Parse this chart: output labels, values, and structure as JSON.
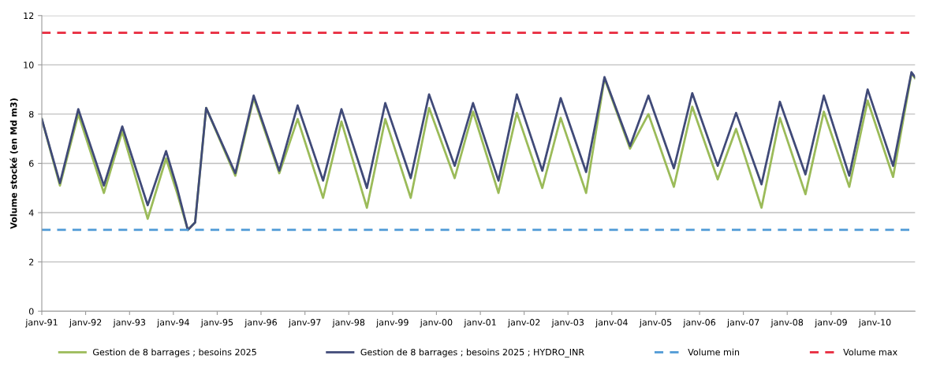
{
  "chart_data": {
    "type": "line",
    "ylabel": "Volume stocké (en Md m3)",
    "xlim": [
      "1991-01",
      "2010-12"
    ],
    "xticks": [
      {
        "value": "1991-01",
        "label": "janv-91"
      },
      {
        "value": "1992-01",
        "label": "janv-92"
      },
      {
        "value": "1993-01",
        "label": "janv-93"
      },
      {
        "value": "1994-01",
        "label": "janv-94"
      },
      {
        "value": "1995-01",
        "label": "janv-95"
      },
      {
        "value": "1996-01",
        "label": "janv-96"
      },
      {
        "value": "1997-01",
        "label": "janv-97"
      },
      {
        "value": "1998-01",
        "label": "janv-98"
      },
      {
        "value": "1999-01",
        "label": "janv-99"
      },
      {
        "value": "2000-01",
        "label": "janv-00"
      },
      {
        "value": "2001-01",
        "label": "janv-01"
      },
      {
        "value": "2002-01",
        "label": "janv-02"
      },
      {
        "value": "2003-01",
        "label": "janv-03"
      },
      {
        "value": "2004-01",
        "label": "janv-04"
      },
      {
        "value": "2005-01",
        "label": "janv-05"
      },
      {
        "value": "2006-01",
        "label": "janv-06"
      },
      {
        "value": "2007-01",
        "label": "janv-07"
      },
      {
        "value": "2008-01",
        "label": "janv-08"
      },
      {
        "value": "2009-01",
        "label": "janv-09"
      },
      {
        "value": "2010-01",
        "label": "janv-10"
      }
    ],
    "ylim": [
      0,
      12
    ],
    "yticks": [
      0,
      2,
      4,
      6,
      8,
      10,
      12
    ],
    "grid": "y",
    "legend": "bottom",
    "marker": "none",
    "line_style": "solid",
    "x": [
      "1991-01",
      "1991-06",
      "1991-11",
      "1992-06",
      "1992-11",
      "1993-06",
      "1993-11",
      "1994-02",
      "1994-05",
      "1994-07",
      "1994-10",
      "1995-06",
      "1995-11",
      "1996-06",
      "1996-11",
      "1997-06",
      "1997-11",
      "1998-06",
      "1998-11",
      "1999-06",
      "1999-11",
      "2000-06",
      "2000-11",
      "2001-06",
      "2001-11",
      "2002-06",
      "2002-11",
      "2003-06",
      "2003-11",
      "2004-06",
      "2004-11",
      "2005-06",
      "2005-11",
      "2006-06",
      "2006-11",
      "2007-06",
      "2007-11",
      "2008-06",
      "2008-11",
      "2009-06",
      "2009-11",
      "2010-06",
      "2010-11",
      "2010-12"
    ],
    "series": [
      {
        "name": "Gestion de 8 barrages ; besoins 2025",
        "color": "#9bbb59",
        "values": [
          7.8,
          5.1,
          8.0,
          4.8,
          7.3,
          3.75,
          6.2,
          4.8,
          3.3,
          3.6,
          8.25,
          5.5,
          8.65,
          5.6,
          7.8,
          4.6,
          7.7,
          4.2,
          7.8,
          4.6,
          8.25,
          5.4,
          8.1,
          4.8,
          8.05,
          5.0,
          7.85,
          4.8,
          9.45,
          6.6,
          8.0,
          5.05,
          8.3,
          5.35,
          7.4,
          4.2,
          7.85,
          4.75,
          8.1,
          5.05,
          8.55,
          5.45,
          9.65,
          9.45
        ]
      },
      {
        "name": "Gestion de 8 barrages ; besoins 2025 ; HYDRO_INR",
        "color": "#404a78",
        "values": [
          7.8,
          5.2,
          8.2,
          5.1,
          7.5,
          4.3,
          6.5,
          5.0,
          3.3,
          3.6,
          8.25,
          5.6,
          8.75,
          5.7,
          8.35,
          5.3,
          8.2,
          5.0,
          8.45,
          5.4,
          8.8,
          5.9,
          8.45,
          5.3,
          8.8,
          5.7,
          8.65,
          5.65,
          9.5,
          6.7,
          8.75,
          5.8,
          8.85,
          5.9,
          8.05,
          5.15,
          8.5,
          5.55,
          8.75,
          5.5,
          9.0,
          5.9,
          9.7,
          9.5
        ]
      }
    ],
    "ref_lines": [
      {
        "axis": "y",
        "value": 3.3,
        "label": "Volume min",
        "color": "#4f9ad6",
        "line_style": "dashed"
      },
      {
        "axis": "y",
        "value": 11.3,
        "label": "Volume max",
        "color": "#e8283c",
        "line_style": "dashed"
      }
    ]
  }
}
